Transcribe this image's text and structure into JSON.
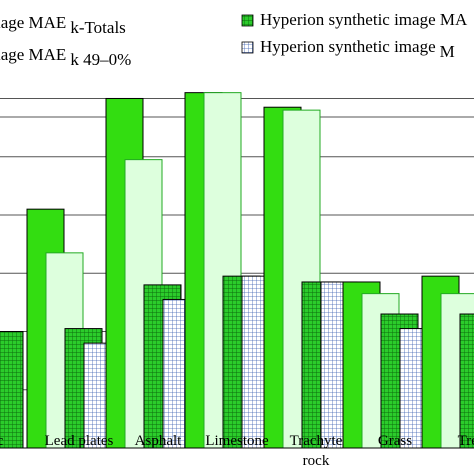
{
  "chart_data": {
    "type": "bar",
    "title": "",
    "xlabel": "",
    "ylabel": "",
    "ylim": [
      0,
      6.3
    ],
    "grid": "horizontal",
    "legend_position": "top",
    "categories": [
      "c",
      "Lead plates",
      "Asphalt",
      "Limestone",
      "Trachyte rock",
      "Grass",
      "Trees"
    ],
    "category_lines": [
      [
        "c"
      ],
      [
        "Lead plates"
      ],
      [
        "Asphalt"
      ],
      [
        "Limestone"
      ],
      [
        "Trachyte",
        "rock"
      ],
      [
        "Grass"
      ],
      [
        "Trees"
      ]
    ],
    "legend": [
      {
        "prefix": "n image MAE",
        "sub": "k-Totals",
        "series": 0
      },
      {
        "prefix": "n image MAE",
        "sub": "k 49–0%",
        "series": 1
      },
      {
        "prefix": "Hyperion synthetic image MA",
        "sub": "",
        "series": 2
      },
      {
        "prefix": "Hyperion synthetic image",
        "sub": "M",
        "series": 3
      }
    ],
    "series": [
      {
        "values": [
          null,
          4.1,
          6.0,
          6.1,
          5.85,
          2.85,
          2.95
        ],
        "color": "#33dd11",
        "pattern": "solid"
      },
      {
        "values": [
          null,
          3.35,
          4.95,
          6.1,
          5.8,
          2.65,
          2.65
        ],
        "color": "#ddffdd",
        "pattern": "solid"
      },
      {
        "values": [
          2.0,
          2.05,
          2.8,
          2.95,
          2.85,
          2.3,
          2.3
        ],
        "color": "#22cc22",
        "pattern": "grid-green"
      },
      {
        "values": [
          null,
          1.8,
          2.55,
          2.95,
          2.85,
          2.05,
          2.15
        ],
        "color": "#ffffff",
        "pattern": "grid-blue"
      }
    ]
  }
}
